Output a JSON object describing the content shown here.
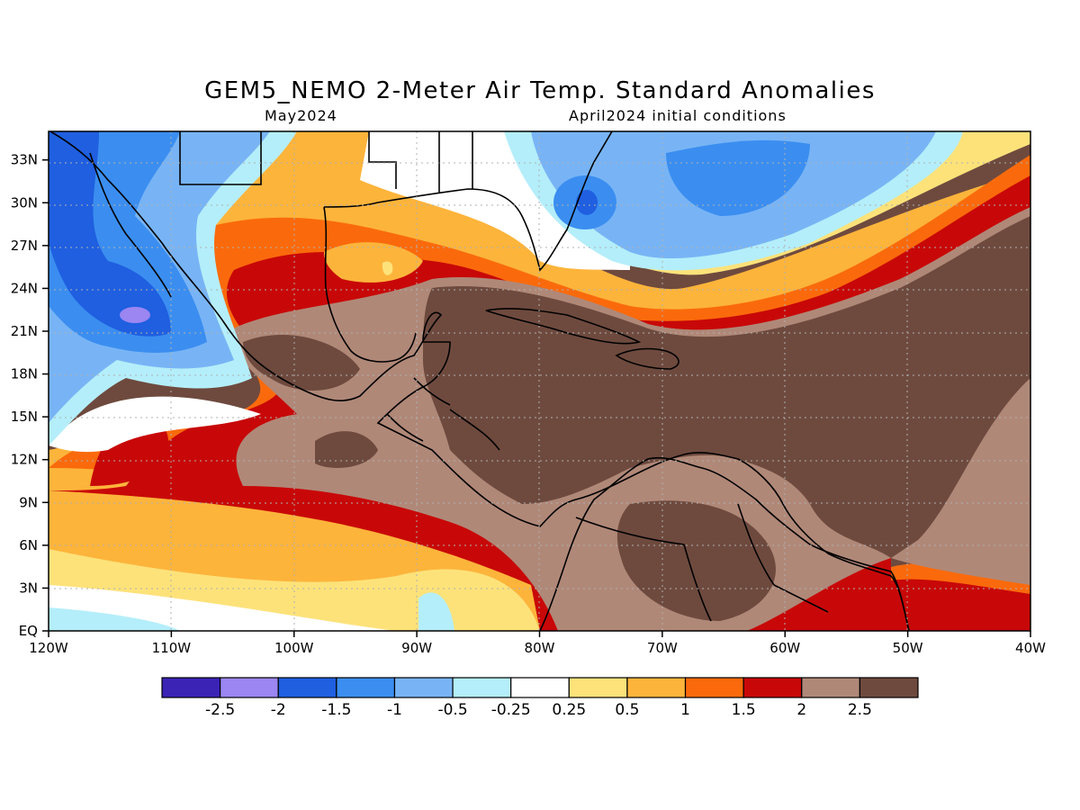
{
  "title": "GEM5_NEMO 2-Meter Air Temp. Standard Anomalies",
  "subtitle_left": "May2024",
  "subtitle_right": "April2024 initial conditions",
  "lon_ticks": [
    "120W",
    "110W",
    "100W",
    "90W",
    "80W",
    "70W",
    "60W",
    "50W",
    "40W"
  ],
  "lat_ticks": [
    "EQ",
    "3N",
    "6N",
    "9N",
    "12N",
    "15N",
    "18N",
    "21N",
    "24N",
    "27N",
    "30N",
    "33N"
  ],
  "colorbar": {
    "colors": [
      "#3b23b6",
      "#9b86f2",
      "#1f5fe0",
      "#3b8ef0",
      "#78b4f5",
      "#b4eefa",
      "#ffffff",
      "#fde27a",
      "#fdb43b",
      "#fa6a0c",
      "#c80808",
      "#b08878",
      "#6e4a3e"
    ],
    "labels": [
      "-2.5",
      "-2",
      "-1.5",
      "-1",
      "-0.5",
      "-0.25",
      "0.25",
      "0.5",
      "1",
      "1.5",
      "2",
      "2.5"
    ]
  },
  "map_colors": {
    "dark_brown": "#6e4a3e",
    "light_brown": "#b08878",
    "dark_red": "#c80808",
    "orange": "#fa6a0c",
    "gold": "#fdb43b",
    "yellow": "#fde27a",
    "white": "#ffffff",
    "pale_blue": "#b4eefa",
    "light_blue": "#78b4f5",
    "mid_blue": "#3b8ef0",
    "blue": "#1f5fe0",
    "lavender": "#9b86f2"
  }
}
